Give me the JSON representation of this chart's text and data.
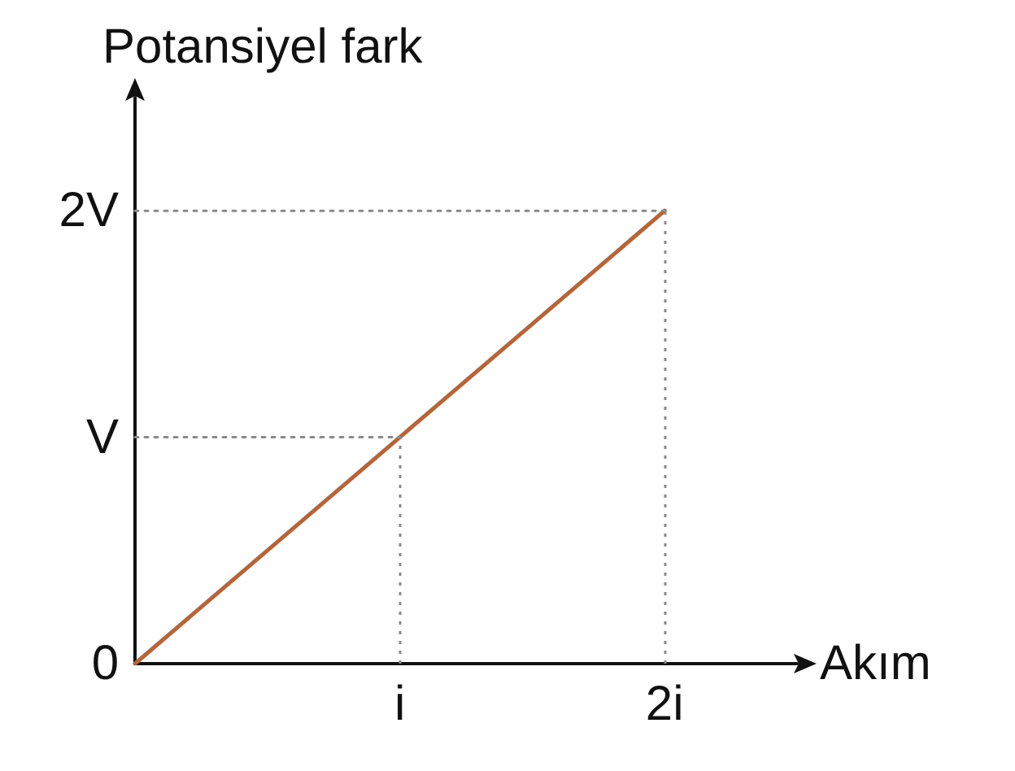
{
  "chart_data": {
    "type": "line",
    "xlabel": "Akım",
    "ylabel": "Potansiyel fark",
    "categories": [
      null,
      "i",
      "2i"
    ],
    "ylim": [
      0,
      2.5
    ],
    "yticks": [
      {
        "value": 0,
        "label": "0"
      },
      {
        "value": 1,
        "label": "V"
      },
      {
        "value": 2,
        "label": "2V"
      }
    ],
    "series": [
      {
        "color": "#b5653a",
        "values": [
          0,
          1,
          2
        ]
      },
      {
        "color": "#8a8a8a",
        "values": [
          1,
          1,
          null
        ],
        "line_style": "dotted"
      },
      {
        "color": "#8a8a8a",
        "values": [
          2,
          2,
          2
        ],
        "line_style": "dotted"
      }
    ],
    "ref_lines": [
      {
        "axis": "x",
        "value": "i",
        "color": "#8a8a8a",
        "line_style": "dotted"
      },
      {
        "axis": "x",
        "value": "2i",
        "color": "#8a8a8a",
        "line_style": "dotted"
      }
    ],
    "marker": "none",
    "line_style": "solid"
  }
}
